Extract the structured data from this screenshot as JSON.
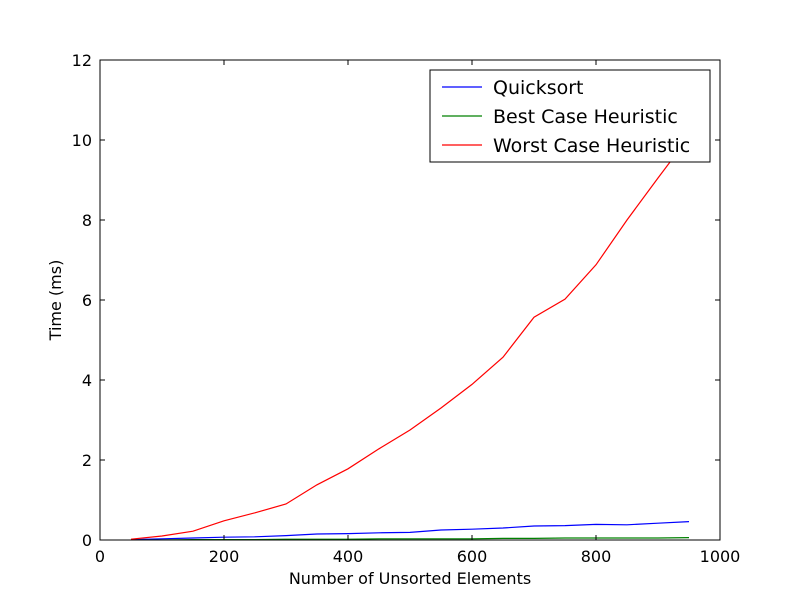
{
  "chart_data": {
    "type": "line",
    "title": "",
    "xlabel": "Number of Unsorted Elements",
    "ylabel": "Time (ms)",
    "xlim": [
      0,
      1000
    ],
    "ylim": [
      0,
      12
    ],
    "xticks": [
      0,
      200,
      400,
      600,
      800,
      1000
    ],
    "yticks": [
      0,
      2,
      4,
      6,
      8,
      10,
      12
    ],
    "xtick_labels": [
      "0",
      "200",
      "400",
      "600",
      "800",
      "1000"
    ],
    "ytick_labels": [
      "0",
      "2",
      "4",
      "6",
      "8",
      "10",
      "12"
    ],
    "grid": false,
    "legend_position": "top-right",
    "x": [
      50,
      100,
      150,
      200,
      250,
      300,
      350,
      400,
      450,
      500,
      550,
      600,
      650,
      700,
      750,
      800,
      850,
      900,
      950
    ],
    "series": [
      {
        "name": "Quicksort",
        "color": "#0000ff",
        "values": [
          0.01,
          0.03,
          0.05,
          0.07,
          0.08,
          0.11,
          0.15,
          0.16,
          0.18,
          0.19,
          0.25,
          0.27,
          0.3,
          0.35,
          0.36,
          0.39,
          0.38,
          0.42,
          0.46
        ]
      },
      {
        "name": "Best Case Heuristic",
        "color": "#008000",
        "values": [
          0.0,
          0.0,
          0.01,
          0.01,
          0.01,
          0.02,
          0.02,
          0.02,
          0.03,
          0.03,
          0.03,
          0.03,
          0.04,
          0.04,
          0.05,
          0.05,
          0.05,
          0.05,
          0.06
        ]
      },
      {
        "name": "Worst Case Heuristic",
        "color": "#ff0000",
        "values": [
          0.02,
          0.1,
          0.22,
          0.48,
          0.68,
          0.9,
          1.38,
          1.78,
          2.28,
          2.75,
          3.3,
          3.89,
          4.57,
          5.57,
          6.02,
          6.88,
          8.0,
          9.05,
          10.08
        ]
      }
    ]
  }
}
